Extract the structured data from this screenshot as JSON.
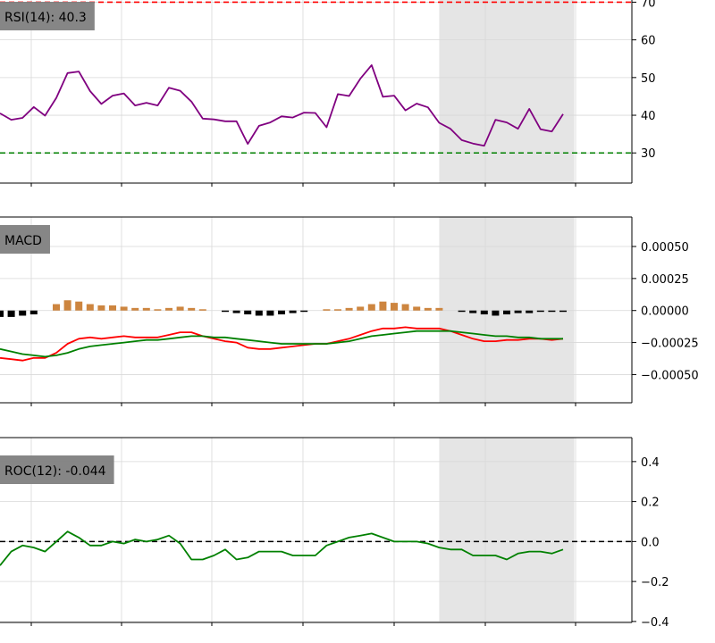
{
  "chart_data": [
    {
      "type": "line",
      "panel": "rsi",
      "title": "RSI(14): 40.3",
      "ylim": [
        22,
        72
      ],
      "yticks": [
        30,
        40,
        50,
        60,
        70
      ],
      "grid": true,
      "legend_placement": "top-left",
      "reference_lines": [
        {
          "y": 70,
          "color": "#ff0000",
          "style": "dashed"
        },
        {
          "y": 30,
          "color": "#008000",
          "style": "dashed"
        }
      ],
      "series": [
        {
          "color": "#800080",
          "values": [
            40.5,
            38.8,
            39.3,
            42.2,
            39.9,
            44.6,
            51.2,
            51.6,
            46.4,
            43.0,
            45.2,
            45.8,
            42.6,
            43.3,
            42.6,
            47.3,
            46.5,
            43.6,
            39.1,
            38.9,
            38.4,
            38.4,
            32.4,
            37.2,
            38.1,
            39.7,
            39.4,
            40.7,
            40.6,
            36.8,
            45.6,
            45.1,
            49.7,
            53.3,
            44.9,
            45.2,
            41.3,
            43.1,
            42.1,
            38.0,
            36.4,
            33.4,
            32.5,
            31.9,
            38.8,
            38.1,
            36.4,
            41.7,
            36.3,
            35.7,
            40.3
          ]
        }
      ]
    },
    {
      "type": "bar+line",
      "panel": "macd",
      "title": "MACD",
      "ylim": [
        -0.00072,
        0.00073
      ],
      "yticks": [
        0.0005,
        0.00025,
        0.0,
        -0.00025,
        -0.0005
      ],
      "ytick_labels": [
        "0.00050",
        "0.00025",
        "0.00000",
        "−0.00025",
        "−0.00050"
      ],
      "grid": true,
      "legend_placement": "top-left",
      "histogram": {
        "positive_color": "#cd853f",
        "negative_color": "#000000",
        "values": [
          -5e-05,
          -5e-05,
          -4e-05,
          -3e-05,
          0,
          5e-05,
          8e-05,
          7e-05,
          5e-05,
          4e-05,
          4e-05,
          3e-05,
          2e-05,
          2e-05,
          1e-05,
          2e-05,
          3e-05,
          2e-05,
          1e-05,
          0,
          -1e-05,
          -2e-05,
          -3e-05,
          -4e-05,
          -4e-05,
          -3e-05,
          -2e-05,
          -1e-05,
          0,
          1e-05,
          1e-05,
          2e-05,
          3e-05,
          5e-05,
          7e-05,
          6e-05,
          5e-05,
          3e-05,
          2e-05,
          2e-05,
          0,
          -1e-05,
          -2e-05,
          -3e-05,
          -4e-05,
          -3e-05,
          -2e-05,
          -2e-05,
          -1e-05,
          -1e-05,
          -1e-05
        ]
      },
      "series": [
        {
          "color": "#ff0000",
          "values": [
            -0.00037,
            -0.00038,
            -0.00039,
            -0.00037,
            -0.00037,
            -0.00033,
            -0.00026,
            -0.00022,
            -0.00021,
            -0.00022,
            -0.00021,
            -0.0002,
            -0.00021,
            -0.00021,
            -0.00021,
            -0.00019,
            -0.00017,
            -0.00017,
            -0.0002,
            -0.00022,
            -0.00024,
            -0.00025,
            -0.00029,
            -0.0003,
            -0.0003,
            -0.00029,
            -0.00028,
            -0.00027,
            -0.00026,
            -0.00026,
            -0.00024,
            -0.00022,
            -0.00019,
            -0.00016,
            -0.00014,
            -0.00014,
            -0.00013,
            -0.00014,
            -0.00014,
            -0.00014,
            -0.00016,
            -0.00019,
            -0.00022,
            -0.00024,
            -0.00024,
            -0.00023,
            -0.00023,
            -0.00022,
            -0.00022,
            -0.00023,
            -0.00022
          ]
        },
        {
          "color": "#008000",
          "values": [
            -0.0003,
            -0.00032,
            -0.00034,
            -0.00035,
            -0.00036,
            -0.00035,
            -0.00033,
            -0.0003,
            -0.00028,
            -0.00027,
            -0.00026,
            -0.00025,
            -0.00024,
            -0.00023,
            -0.00023,
            -0.00022,
            -0.00021,
            -0.0002,
            -0.0002,
            -0.00021,
            -0.00021,
            -0.00022,
            -0.00023,
            -0.00024,
            -0.00025,
            -0.00026,
            -0.00026,
            -0.00026,
            -0.00026,
            -0.00026,
            -0.00025,
            -0.00024,
            -0.00022,
            -0.0002,
            -0.00019,
            -0.00018,
            -0.00017,
            -0.00016,
            -0.00016,
            -0.00016,
            -0.00016,
            -0.00017,
            -0.00018,
            -0.00019,
            -0.0002,
            -0.0002,
            -0.00021,
            -0.00021,
            -0.00022,
            -0.00022,
            -0.00022
          ]
        }
      ]
    },
    {
      "type": "line",
      "panel": "roc",
      "title": "ROC(12): -0.044",
      "ylim": [
        -0.405,
        0.52
      ],
      "yticks": [
        0.4,
        0.2,
        0.0,
        -0.2,
        -0.4
      ],
      "ytick_labels": [
        "0.4",
        "0.2",
        "0.0",
        "−0.2",
        "−0.4"
      ],
      "grid": true,
      "legend_placement": "top-left",
      "reference_lines": [
        {
          "y": 0,
          "color": "#000000",
          "style": "dashed"
        }
      ],
      "series": [
        {
          "color": "#008000",
          "values": [
            -0.12,
            -0.05,
            -0.02,
            -0.03,
            -0.05,
            0.0,
            0.05,
            0.02,
            -0.02,
            -0.02,
            0.0,
            -0.01,
            0.01,
            0.0,
            0.01,
            0.03,
            -0.01,
            -0.09,
            -0.09,
            -0.07,
            -0.04,
            -0.09,
            -0.08,
            -0.05,
            -0.05,
            -0.05,
            -0.07,
            -0.07,
            -0.07,
            -0.02,
            0.0,
            0.02,
            0.03,
            0.04,
            0.02,
            0.0,
            0.0,
            0.0,
            -0.01,
            -0.03,
            -0.04,
            -0.04,
            -0.07,
            -0.07,
            -0.07,
            -0.09,
            -0.06,
            -0.05,
            -0.05,
            -0.06,
            -0.04
          ]
        }
      ]
    }
  ],
  "shaded_region": {
    "start_index": 39,
    "end_index": 51,
    "color": "#e5e5e5"
  }
}
